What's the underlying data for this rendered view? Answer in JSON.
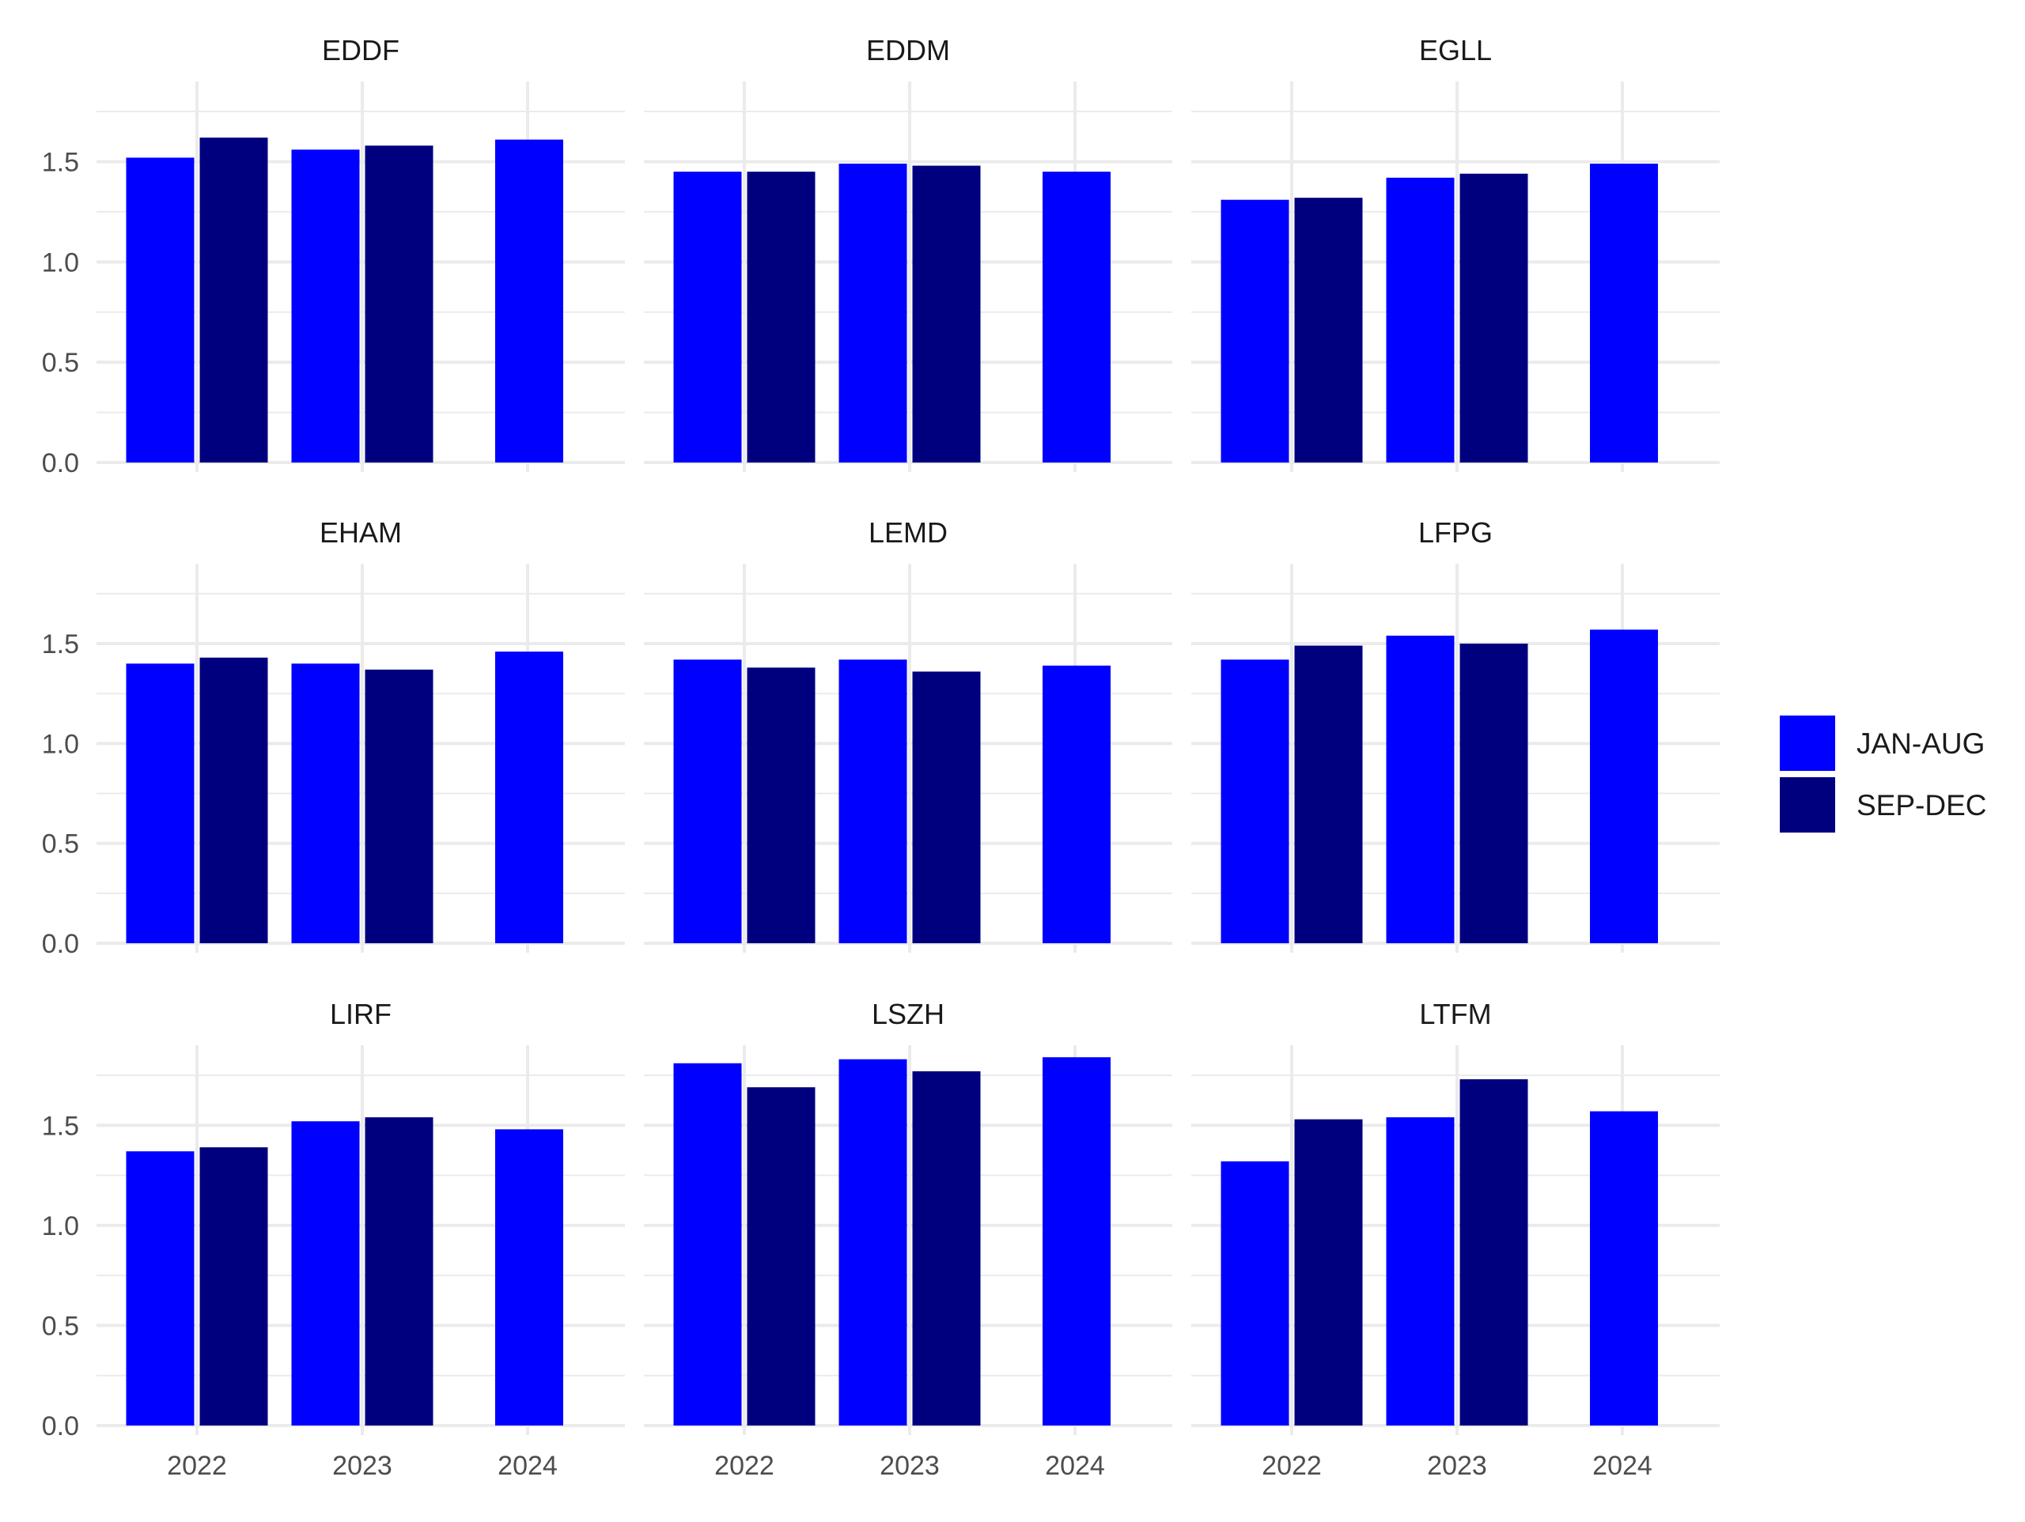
{
  "chart_data": {
    "type": "bar",
    "layout": "facet-grid-3x3",
    "categories": [
      "2022",
      "2023",
      "2024"
    ],
    "ylim": [
      0,
      1.9
    ],
    "y_ticks": [
      "0.0",
      "0.5",
      "1.0",
      "1.5"
    ],
    "x_ticks": [
      "2022",
      "2023",
      "2024"
    ],
    "grid": true,
    "legend_position": "right",
    "series_names": [
      "JAN-AUG",
      "SEP-DEC"
    ],
    "colors": {
      "JAN-AUG": "#0000FF",
      "SEP-DEC": "#00007F"
    },
    "panels": [
      {
        "title": "EDDF",
        "series": [
          {
            "name": "JAN-AUG",
            "values": [
              1.52,
              1.56,
              1.61
            ]
          },
          {
            "name": "SEP-DEC",
            "values": [
              1.62,
              1.58,
              null
            ]
          }
        ]
      },
      {
        "title": "EDDM",
        "series": [
          {
            "name": "JAN-AUG",
            "values": [
              1.45,
              1.49,
              1.45
            ]
          },
          {
            "name": "SEP-DEC",
            "values": [
              1.45,
              1.48,
              null
            ]
          }
        ]
      },
      {
        "title": "EGLL",
        "series": [
          {
            "name": "JAN-AUG",
            "values": [
              1.31,
              1.42,
              1.49
            ]
          },
          {
            "name": "SEP-DEC",
            "values": [
              1.32,
              1.44,
              null
            ]
          }
        ]
      },
      {
        "title": "EHAM",
        "series": [
          {
            "name": "JAN-AUG",
            "values": [
              1.4,
              1.4,
              1.46
            ]
          },
          {
            "name": "SEP-DEC",
            "values": [
              1.43,
              1.37,
              null
            ]
          }
        ]
      },
      {
        "title": "LEMD",
        "series": [
          {
            "name": "JAN-AUG",
            "values": [
              1.42,
              1.42,
              1.39
            ]
          },
          {
            "name": "SEP-DEC",
            "values": [
              1.38,
              1.36,
              null
            ]
          }
        ]
      },
      {
        "title": "LFPG",
        "series": [
          {
            "name": "JAN-AUG",
            "values": [
              1.42,
              1.54,
              1.57
            ]
          },
          {
            "name": "SEP-DEC",
            "values": [
              1.49,
              1.5,
              null
            ]
          }
        ]
      },
      {
        "title": "LIRF",
        "series": [
          {
            "name": "JAN-AUG",
            "values": [
              1.37,
              1.52,
              1.48
            ]
          },
          {
            "name": "SEP-DEC",
            "values": [
              1.39,
              1.54,
              null
            ]
          }
        ]
      },
      {
        "title": "LSZH",
        "series": [
          {
            "name": "JAN-AUG",
            "values": [
              1.81,
              1.83,
              1.84
            ]
          },
          {
            "name": "SEP-DEC",
            "values": [
              1.69,
              1.77,
              null
            ]
          }
        ]
      },
      {
        "title": "LTFM",
        "series": [
          {
            "name": "JAN-AUG",
            "values": [
              1.32,
              1.54,
              1.57
            ]
          },
          {
            "name": "SEP-DEC",
            "values": [
              1.53,
              1.73,
              null
            ]
          }
        ]
      }
    ]
  },
  "legend": {
    "items": [
      "JAN-AUG",
      "SEP-DEC"
    ]
  }
}
